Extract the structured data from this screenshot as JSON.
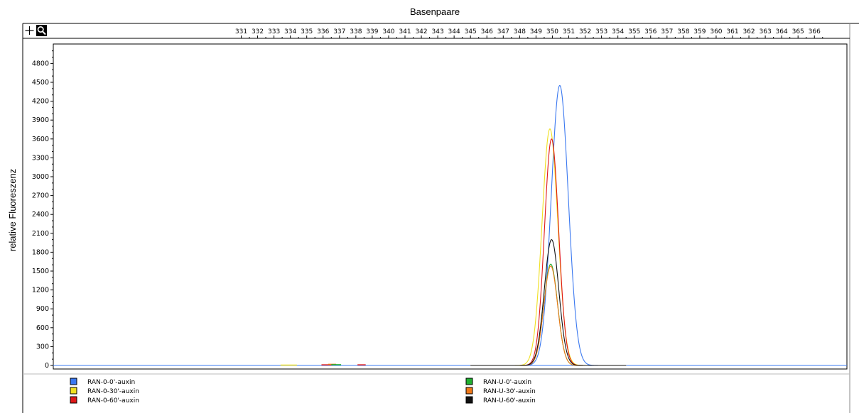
{
  "chart_data": {
    "type": "line",
    "title": "Basenpaare",
    "xlabel": "Basenpaare",
    "ylabel": "relative Fluoreszenz",
    "xlim": [
      330.6,
      366.5
    ],
    "ylim": [
      -80,
      4950
    ],
    "x_ticks": [
      331,
      332,
      333,
      334,
      335,
      336,
      337,
      338,
      339,
      340,
      341,
      342,
      343,
      344,
      345,
      346,
      347,
      348,
      349,
      350,
      351,
      352,
      353,
      354,
      355,
      356,
      357,
      358,
      359,
      360,
      361,
      362,
      363,
      364,
      365,
      366
    ],
    "y_ticks": [
      0,
      300,
      600,
      900,
      1200,
      1500,
      1800,
      2100,
      2400,
      2700,
      3000,
      3300,
      3600,
      3900,
      4200,
      4500,
      4800
    ],
    "grid": false,
    "legend_position": "bottom",
    "series": [
      {
        "name": "RAN-0-0'-auxin",
        "color": "#3a78f0",
        "peak_x": 350.45,
        "peak_y": 4450,
        "sigma": 0.52
      },
      {
        "name": "RAN-0-30'-auxin",
        "color": "#f0e020",
        "peak_x": 349.85,
        "peak_y": 3760,
        "sigma": 0.48
      },
      {
        "name": "RAN-0-60'-auxin",
        "color": "#e01818",
        "peak_x": 349.95,
        "peak_y": 3600,
        "sigma": 0.43
      },
      {
        "name": "RAN-U-0'-auxin",
        "color": "#20b030",
        "peak_x": 349.9,
        "peak_y": 1610,
        "sigma": 0.42
      },
      {
        "name": "RAN-U-30'-auxin",
        "color": "#f07818",
        "peak_x": 349.9,
        "peak_y": 1580,
        "sigma": 0.42
      },
      {
        "name": "RAN-U-60'-auxin",
        "color": "#111111",
        "peak_x": 349.95,
        "peak_y": 2000,
        "sigma": 0.44
      }
    ],
    "noise_segments": [
      {
        "color": "#e01818",
        "x": [
          335.9,
          336.6
        ],
        "y": 10
      },
      {
        "color": "#f07818",
        "x": [
          336.3,
          336.8
        ],
        "y": 18
      },
      {
        "color": "#20b030",
        "x": [
          336.5,
          337.1
        ],
        "y": 12
      },
      {
        "color": "#f0e020",
        "x": [
          333.4,
          334.4
        ],
        "y": 6
      },
      {
        "color": "#e01818",
        "x": [
          338.1,
          338.6
        ],
        "y": 10
      }
    ]
  },
  "toolbar": {
    "plus_icon": "plus-icon",
    "zoom_icon": "magnifier-icon"
  }
}
